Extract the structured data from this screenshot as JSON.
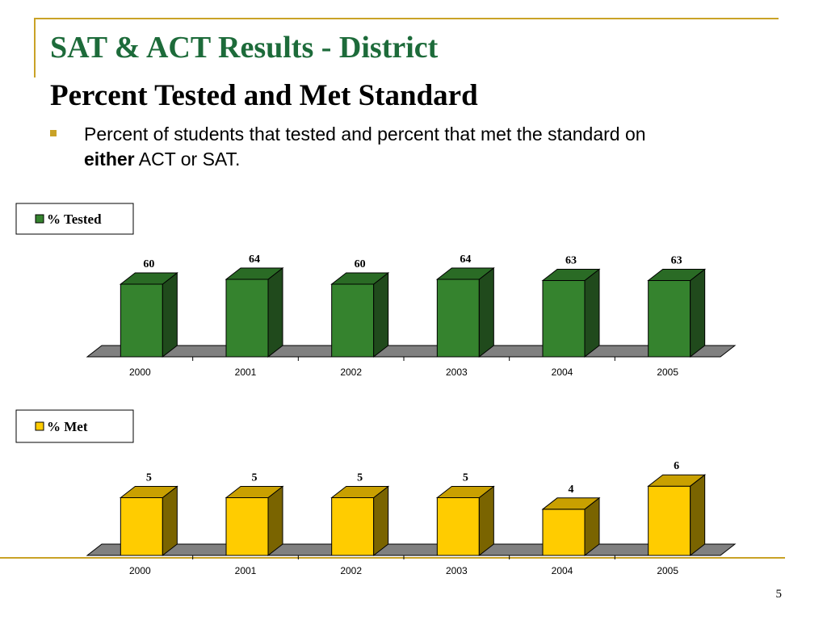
{
  "slide": {
    "title": "SAT & ACT Results - District",
    "subtitle": "Percent Tested and Met Standard",
    "bullet_text": "Percent of students that tested and percent that met the standard on",
    "bullet_emphasis": "either",
    "bullet_tail": "ACT or SAT.",
    "page_number": "5"
  },
  "colors": {
    "title": "#1d6b3a",
    "accent_gold": "#c9a227",
    "tested_front": "#35832e",
    "tested_side": "#204a1c",
    "tested_top": "#2a6b25",
    "met_front": "#ffcc00",
    "met_side": "#7a6400",
    "met_top": "#c9a000",
    "floor": "#808080"
  },
  "chart_data": [
    {
      "type": "bar",
      "categories": [
        "2000",
        "2001",
        "2002",
        "2003",
        "2004",
        "2005"
      ],
      "series": [
        {
          "name": "% Tested",
          "values": [
            60,
            64,
            60,
            64,
            63,
            63
          ]
        }
      ],
      "legend": "top-left"
    },
    {
      "type": "bar",
      "categories": [
        "2000",
        "2001",
        "2002",
        "2003",
        "2004",
        "2005"
      ],
      "series": [
        {
          "name": "% Met",
          "values": [
            5,
            5,
            5,
            5,
            4,
            6
          ]
        }
      ],
      "legend": "top-left"
    }
  ]
}
